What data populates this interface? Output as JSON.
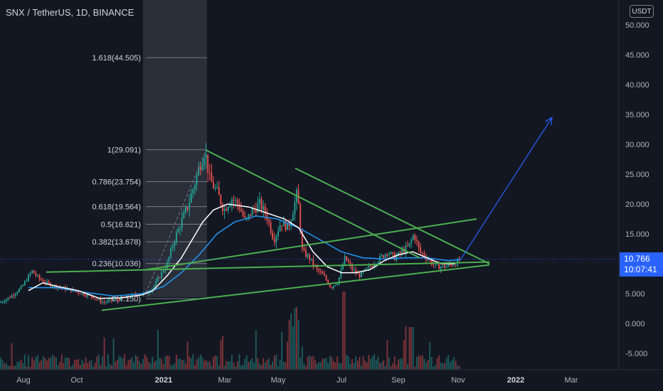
{
  "header": {
    "title": "SNX / TetherUS, 1D, BINANCE",
    "currency_button": "USDT"
  },
  "price_tag": {
    "price": "10.766",
    "countdown": "10:07:41"
  },
  "colors": {
    "background": "#131722",
    "trendline": "#4caf50",
    "projection": "#2962ff",
    "ma_fast": "#ffffff",
    "ma_slow": "#2196f3",
    "candle_up": "#26a69a",
    "candle_down": "#ef5350"
  },
  "chart_data": {
    "type": "line",
    "title": "",
    "yaxis": {
      "ticks": [
        "50.000",
        "45.000",
        "40.000",
        "35.000",
        "30.000",
        "25.000",
        "20.000",
        "15.000",
        "10.000",
        "5.000",
        "0.000",
        "-5.000"
      ],
      "range": [
        -8,
        50
      ]
    },
    "xaxis": {
      "ticks": [
        "Aug",
        "Oct",
        "2021",
        "Mar",
        "May",
        "Jul",
        "Sep",
        "Nov",
        "2022",
        "Mar"
      ],
      "bold_ticks": [
        "2021",
        "2022"
      ]
    },
    "fibonacci": [
      {
        "label": "1.618(44.505)",
        "value": 44.505
      },
      {
        "label": "1(29.091)",
        "value": 29.091
      },
      {
        "label": "0.786(23.754)",
        "value": 23.754
      },
      {
        "label": "0.618(19.564)",
        "value": 19.564
      },
      {
        "label": "0.5(16.621)",
        "value": 16.621
      },
      {
        "label": "0.382(13.678)",
        "value": 13.678
      },
      {
        "label": "0.236(10.036)",
        "value": 10.036
      },
      {
        "label": "0(4.150)",
        "value": 4.15
      }
    ],
    "price_series": {
      "name": "",
      "points": [
        [
          0,
          3.5
        ],
        [
          15,
          4.5
        ],
        [
          30,
          6
        ],
        [
          45,
          8.8
        ],
        [
          55,
          7.5
        ],
        [
          70,
          6.5
        ],
        [
          85,
          6
        ],
        [
          100,
          5.6
        ],
        [
          115,
          5
        ],
        [
          130,
          4.5
        ],
        [
          145,
          3.5
        ],
        [
          160,
          4
        ],
        [
          175,
          4.2
        ],
        [
          190,
          4.8
        ],
        [
          205,
          5
        ],
        [
          215,
          6
        ],
        [
          225,
          8
        ],
        [
          235,
          10
        ],
        [
          245,
          14
        ],
        [
          255,
          17
        ],
        [
          265,
          20
        ],
        [
          275,
          24
        ],
        [
          282,
          27
        ],
        [
          288,
          29
        ],
        [
          295,
          24
        ],
        [
          305,
          22
        ],
        [
          315,
          19
        ],
        [
          325,
          21
        ],
        [
          335,
          20
        ],
        [
          345,
          17
        ],
        [
          355,
          19
        ],
        [
          365,
          20
        ],
        [
          375,
          18
        ],
        [
          385,
          14
        ],
        [
          395,
          17
        ],
        [
          405,
          16
        ],
        [
          412,
          19
        ],
        [
          418,
          22
        ],
        [
          425,
          12
        ],
        [
          435,
          11
        ],
        [
          445,
          9
        ],
        [
          455,
          8
        ],
        [
          465,
          6
        ],
        [
          475,
          7
        ],
        [
          485,
          11
        ],
        [
          495,
          9
        ],
        [
          505,
          8
        ],
        [
          515,
          9
        ],
        [
          525,
          10
        ],
        [
          535,
          11
        ],
        [
          545,
          12
        ],
        [
          555,
          11
        ],
        [
          565,
          12
        ],
        [
          575,
          13
        ],
        [
          582,
          15
        ],
        [
          590,
          12
        ],
        [
          600,
          11
        ],
        [
          612,
          9.5
        ],
        [
          625,
          9.5
        ],
        [
          640,
          10
        ],
        [
          648,
          10.8
        ]
      ]
    },
    "ma_fast": {
      "name": "",
      "points": [
        [
          40,
          5.5
        ],
        [
          60,
          6.8
        ],
        [
          80,
          6.2
        ],
        [
          110,
          5.5
        ],
        [
          140,
          4.2
        ],
        [
          170,
          4.3
        ],
        [
          200,
          4.8
        ],
        [
          215,
          5.5
        ],
        [
          235,
          8
        ],
        [
          255,
          11
        ],
        [
          270,
          14
        ],
        [
          285,
          17
        ],
        [
          300,
          19
        ],
        [
          320,
          20
        ],
        [
          350,
          19.5
        ],
        [
          375,
          18.5
        ],
        [
          400,
          17.5
        ],
        [
          420,
          16
        ],
        [
          440,
          12
        ],
        [
          460,
          9.5
        ],
        [
          480,
          8.5
        ],
        [
          500,
          8.5
        ],
        [
          520,
          9
        ],
        [
          540,
          10.5
        ],
        [
          560,
          11.5
        ],
        [
          580,
          12
        ],
        [
          600,
          11
        ],
        [
          620,
          10
        ],
        [
          640,
          10
        ]
      ]
    },
    "ma_slow": {
      "name": "",
      "points": [
        [
          40,
          6
        ],
        [
          80,
          6
        ],
        [
          120,
          5.2
        ],
        [
          160,
          4.6
        ],
        [
          200,
          5
        ],
        [
          230,
          6.2
        ],
        [
          255,
          8.5
        ],
        [
          280,
          11.5
        ],
        [
          305,
          15
        ],
        [
          330,
          17
        ],
        [
          360,
          18
        ],
        [
          390,
          17.5
        ],
        [
          420,
          16
        ],
        [
          450,
          14
        ],
        [
          480,
          12
        ],
        [
          510,
          11
        ],
        [
          540,
          10.8
        ],
        [
          570,
          11
        ],
        [
          600,
          11
        ],
        [
          630,
          10.5
        ],
        [
          648,
          10.7
        ]
      ]
    },
    "trendlines": [
      {
        "from": [
          65,
          8.6
        ],
        "to": [
          688,
          10.3
        ]
      },
      {
        "from": [
          143,
          2.2
        ],
        "to": [
          688,
          9.8
        ]
      },
      {
        "from": [
          205,
          9
        ],
        "to": [
          670,
          17.5
        ]
      },
      {
        "from": [
          290,
          29
        ],
        "to": [
          590,
          11
        ]
      },
      {
        "from": [
          415,
          26
        ],
        "to": [
          688,
          10
        ]
      }
    ],
    "projection": {
      "from": [
        648,
        10.8
      ],
      "to": [
        776,
        34.5
      ]
    },
    "last_price": 10.766
  }
}
